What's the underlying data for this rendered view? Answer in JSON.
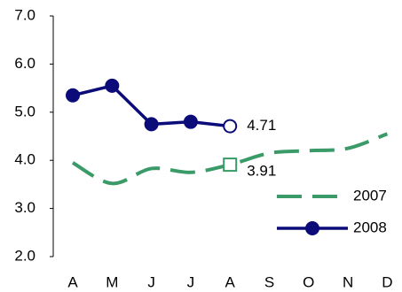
{
  "chart_data": {
    "type": "line",
    "categories": [
      "A",
      "M",
      "J",
      "J",
      "A",
      "S",
      "O",
      "N",
      "D"
    ],
    "series": [
      {
        "name": "2007",
        "color": "#3a9a68",
        "dashed": true,
        "smooth": true,
        "marker": "square",
        "values": [
          3.95,
          3.52,
          3.83,
          3.75,
          3.91,
          4.15,
          4.2,
          4.25,
          4.55
        ]
      },
      {
        "name": "2008",
        "color": "#0b0b7a",
        "dashed": false,
        "smooth": false,
        "marker": "circle",
        "values": [
          5.35,
          5.55,
          4.75,
          4.8,
          4.71,
          null,
          null,
          null,
          null
        ]
      }
    ],
    "ylim": [
      2,
      7
    ],
    "yticks": [
      {
        "value": 2,
        "label": "2.0"
      },
      {
        "value": 3,
        "label": "3.0"
      },
      {
        "value": 4,
        "label": "4.0"
      },
      {
        "value": 5,
        "label": "5.0"
      },
      {
        "value": 6,
        "label": "6.0"
      },
      {
        "value": 7,
        "label": "7.0"
      }
    ],
    "grid": false,
    "legend": "lower right"
  }
}
